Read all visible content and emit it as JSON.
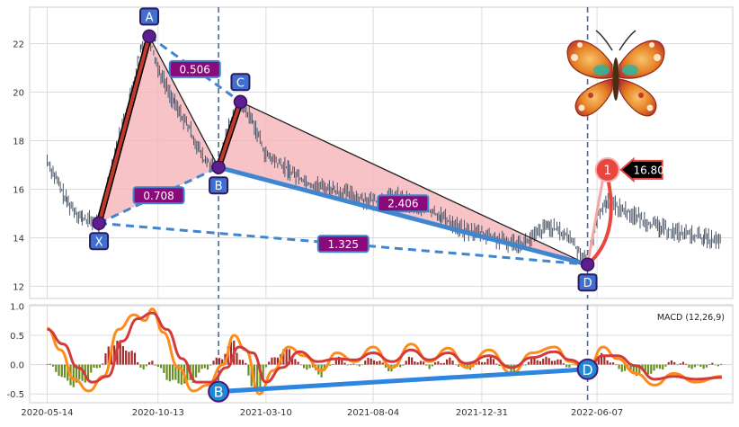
{
  "chart_data": [
    {
      "type": "line",
      "panel": "price",
      "grid": true,
      "ylim": [
        11.5,
        23.5
      ],
      "y_ticks": [
        12,
        14,
        16,
        18,
        20,
        22
      ],
      "x_ticks": [
        "2020-05-14",
        "2020-10-13",
        "2021-03-10",
        "2021-08-04",
        "2021-12-31",
        "2022-06-07"
      ],
      "x_range": [
        "2020-04-20",
        "2022-12-10"
      ],
      "series": [
        {
          "color": "#4a5568",
          "points": [
            [
              "2020-05-14",
              17.2
            ],
            [
              "2020-06-10",
              15.5
            ],
            [
              "2020-07-01",
              14.8
            ],
            [
              "2020-07-24",
              14.6
            ],
            [
              "2020-08-15",
              17.5
            ],
            [
              "2020-09-05",
              19.8
            ],
            [
              "2020-09-20",
              21.8
            ],
            [
              "2020-10-01",
              22.3
            ],
            [
              "2020-10-13",
              21.0
            ],
            [
              "2020-11-05",
              19.5
            ],
            [
              "2020-11-25",
              18.5
            ],
            [
              "2020-12-15",
              17.2
            ],
            [
              "2021-01-04",
              16.9
            ],
            [
              "2021-01-20",
              18.8
            ],
            [
              "2021-02-03",
              19.6
            ],
            [
              "2021-02-20",
              18.8
            ],
            [
              "2021-03-10",
              17.4
            ],
            [
              "2021-04-10",
              16.8
            ],
            [
              "2021-05-10",
              16.2
            ],
            [
              "2021-06-10",
              16.0
            ],
            [
              "2021-07-10",
              15.7
            ],
            [
              "2021-08-04",
              15.5
            ],
            [
              "2021-09-05",
              15.7
            ],
            [
              "2021-10-05",
              15.3
            ],
            [
              "2021-11-05",
              14.9
            ],
            [
              "2021-12-05",
              14.3
            ],
            [
              "2021-12-31",
              14.2
            ],
            [
              "2022-02-01",
              13.8
            ],
            [
              "2022-03-01",
              13.8
            ],
            [
              "2022-04-01",
              14.5
            ],
            [
              "2022-05-01",
              14.0
            ],
            [
              "2022-05-25",
              12.9
            ],
            [
              "2022-06-07",
              14.8
            ],
            [
              "2022-06-20",
              15.5
            ],
            [
              "2022-07-10",
              15.2
            ],
            [
              "2022-08-05",
              14.8
            ],
            [
              "2022-09-01",
              14.4
            ],
            [
              "2022-10-01",
              14.2
            ],
            [
              "2022-11-01",
              14.0
            ],
            [
              "2022-11-25",
              13.8
            ]
          ]
        }
      ],
      "pattern_points": [
        {
          "label": "X",
          "date": "2020-07-24",
          "value": 14.6
        },
        {
          "label": "A",
          "date": "2020-10-01",
          "value": 22.3
        },
        {
          "label": "B",
          "date": "2021-01-04",
          "value": 16.9
        },
        {
          "label": "C",
          "date": "2021-02-03",
          "value": 19.6
        },
        {
          "label": "D",
          "date": "2022-05-25",
          "value": 12.9
        }
      ],
      "ratio_labels": [
        {
          "text": "0.506",
          "between": [
            "A",
            "C"
          ]
        },
        {
          "text": "0.708",
          "between": [
            "X",
            "B"
          ]
        },
        {
          "text": "2.406",
          "between": [
            "B",
            "D"
          ]
        },
        {
          "text": "1.325",
          "between": [
            "X",
            "D"
          ]
        }
      ],
      "target": {
        "label": "1",
        "value": "16.80",
        "date": "2022-06-20",
        "y": 16.8
      },
      "vlines": [
        "2021-01-04",
        "2022-05-25"
      ],
      "colors": {
        "fill": "#f6b4b8",
        "leg": "#3f86d0",
        "node": "#5d1f8f",
        "label_bg": "#8b0a7a",
        "target": "#e8463f"
      }
    },
    {
      "type": "line",
      "panel": "macd",
      "title": "MACD (12,26,9)",
      "grid": true,
      "ylim": [
        -0.65,
        1.02
      ],
      "y_ticks": [
        -0.5,
        0.0,
        0.5,
        1.0
      ],
      "series": [
        {
          "color": "#ff8c1a",
          "points": [
            [
              "2020-05-14",
              0.62
            ],
            [
              "2020-06-01",
              0.25
            ],
            [
              "2020-06-20",
              -0.25
            ],
            [
              "2020-07-10",
              -0.45
            ],
            [
              "2020-07-30",
              -0.2
            ],
            [
              "2020-08-20",
              0.6
            ],
            [
              "2020-09-10",
              0.85
            ],
            [
              "2020-09-25",
              0.75
            ],
            [
              "2020-10-05",
              0.95
            ],
            [
              "2020-10-20",
              0.55
            ],
            [
              "2020-11-10",
              -0.05
            ],
            [
              "2020-11-30",
              -0.45
            ],
            [
              "2020-12-20",
              -0.35
            ],
            [
              "2021-01-10",
              0.0
            ],
            [
              "2021-01-25",
              0.5
            ],
            [
              "2021-02-10",
              0.25
            ],
            [
              "2021-03-01",
              -0.5
            ],
            [
              "2021-03-20",
              -0.1
            ],
            [
              "2021-04-10",
              0.3
            ],
            [
              "2021-05-01",
              0.15
            ],
            [
              "2021-05-25",
              -0.1
            ],
            [
              "2021-06-15",
              0.2
            ],
            [
              "2021-07-10",
              0.05
            ],
            [
              "2021-08-04",
              0.3
            ],
            [
              "2021-08-30",
              -0.05
            ],
            [
              "2021-09-25",
              0.35
            ],
            [
              "2021-10-20",
              0.05
            ],
            [
              "2021-11-15",
              0.28
            ],
            [
              "2021-12-10",
              -0.05
            ],
            [
              "2022-01-10",
              0.25
            ],
            [
              "2022-02-10",
              -0.15
            ],
            [
              "2022-03-10",
              0.2
            ],
            [
              "2022-04-10",
              0.3
            ],
            [
              "2022-05-01",
              0.05
            ],
            [
              "2022-05-25",
              -0.1
            ],
            [
              "2022-06-15",
              0.3
            ],
            [
              "2022-07-05",
              0.1
            ],
            [
              "2022-07-30",
              -0.15
            ],
            [
              "2022-08-25",
              -0.35
            ],
            [
              "2022-09-20",
              -0.15
            ],
            [
              "2022-10-20",
              -0.3
            ],
            [
              "2022-11-25",
              -0.2
            ]
          ]
        },
        {
          "color": "#d33b3b",
          "points": [
            [
              "2020-05-14",
              0.6
            ],
            [
              "2020-06-05",
              0.35
            ],
            [
              "2020-06-25",
              -0.05
            ],
            [
              "2020-07-15",
              -0.3
            ],
            [
              "2020-08-05",
              -0.2
            ],
            [
              "2020-08-25",
              0.4
            ],
            [
              "2020-09-15",
              0.78
            ],
            [
              "2020-10-05",
              0.88
            ],
            [
              "2020-10-25",
              0.6
            ],
            [
              "2020-11-15",
              0.1
            ],
            [
              "2020-12-05",
              -0.3
            ],
            [
              "2020-12-25",
              -0.3
            ],
            [
              "2021-01-15",
              -0.05
            ],
            [
              "2021-02-01",
              0.3
            ],
            [
              "2021-02-20",
              0.2
            ],
            [
              "2021-03-10",
              -0.3
            ],
            [
              "2021-04-01",
              -0.05
            ],
            [
              "2021-04-25",
              0.22
            ],
            [
              "2021-05-20",
              0.05
            ],
            [
              "2021-06-15",
              0.1
            ],
            [
              "2021-07-10",
              0.08
            ],
            [
              "2021-08-04",
              0.2
            ],
            [
              "2021-08-30",
              0.05
            ],
            [
              "2021-09-25",
              0.25
            ],
            [
              "2021-10-20",
              0.08
            ],
            [
              "2021-11-15",
              0.2
            ],
            [
              "2021-12-10",
              0.02
            ],
            [
              "2022-01-10",
              0.15
            ],
            [
              "2022-02-10",
              -0.05
            ],
            [
              "2022-03-10",
              0.12
            ],
            [
              "2022-04-10",
              0.22
            ],
            [
              "2022-05-01",
              0.08
            ],
            [
              "2022-05-25",
              -0.05
            ],
            [
              "2022-06-15",
              0.15
            ],
            [
              "2022-07-05",
              0.15
            ],
            [
              "2022-07-30",
              -0.02
            ],
            [
              "2022-08-25",
              -0.25
            ],
            [
              "2022-09-20",
              -0.2
            ],
            [
              "2022-10-20",
              -0.25
            ],
            [
              "2022-11-25",
              -0.22
            ]
          ]
        }
      ],
      "pattern_points": [
        {
          "label": "B",
          "date": "2021-01-04",
          "value": -0.46
        },
        {
          "label": "D",
          "date": "2022-05-25",
          "value": -0.08
        }
      ],
      "colors": {
        "hist_pos": "#a52a2a",
        "hist_neg": "#6b8e23",
        "divergence": "#2e86de"
      }
    }
  ],
  "decoration": {
    "icon": "butterfly-icon"
  }
}
